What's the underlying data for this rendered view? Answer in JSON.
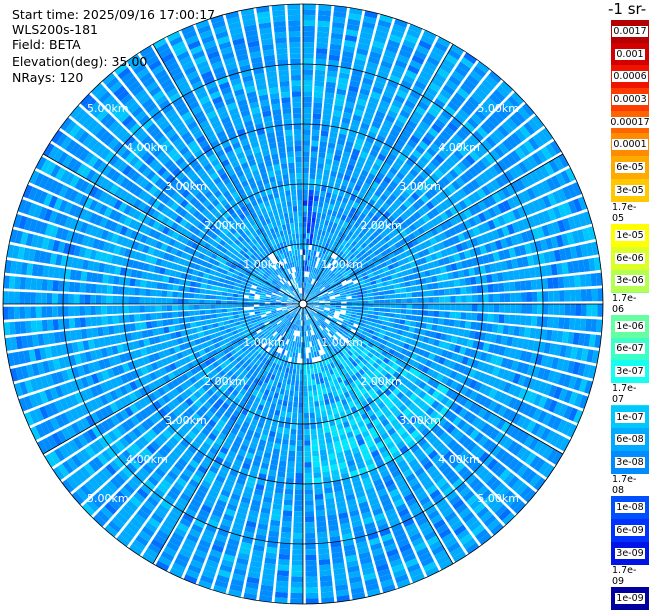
{
  "header": {
    "start_time": "Start time: 2025/09/16 17:00:17",
    "instrument": "WLS200s-181",
    "field": "Field: BETA",
    "elevation": "Elevation(deg): 35.00",
    "nrays": "NRays: 120"
  },
  "colorbar": {
    "units_label": "-1 sr-",
    "labels": [
      "0.0017",
      "0.001",
      "0.0006",
      "0.0003",
      "0.00017",
      "0.0001",
      "6e-05",
      "3e-05",
      "1.7e-05",
      "1e-05",
      "6e-06",
      "3e-06",
      "1.7e-06",
      "1e-06",
      "6e-07",
      "3e-07",
      "1.7e-07",
      "1e-07",
      "6e-08",
      "3e-08",
      "1.7e-08",
      "1e-08",
      "6e-09",
      "3e-09",
      "1.7e-09",
      "1e-09"
    ],
    "colors": [
      "#b40000",
      "#d20000",
      "#f01400",
      "#ff3c00",
      "#ff6400",
      "#ff8c00",
      "#ffaa00",
      "#ffc800",
      "#ffe600",
      "#ffff00",
      "#dcff28",
      "#b4ff50",
      "#8cff78",
      "#64ffa0",
      "#3cffc8",
      "#14fff0",
      "#00e6ff",
      "#00c8ff",
      "#00aaff",
      "#008cff",
      "#006eff",
      "#0050ff",
      "#0032ff",
      "#0014e6",
      "#0000c8",
      "#0000a0"
    ]
  },
  "chart_data": {
    "type": "heatmap",
    "projection": "polar-ppi",
    "field": "BETA",
    "elevation_deg": 35.0,
    "n_rays": 120,
    "range_ticks_km": [
      1,
      2,
      3,
      4,
      5
    ],
    "range_labels": [
      "1.00km",
      "2.00km",
      "3.00km",
      "4.00km",
      "5.00km"
    ],
    "max_range_km": 5.0,
    "background_value_range": [
      "6e-08",
      "3e-08"
    ],
    "enhanced_sectors": [
      {
        "azimuth_deg": [
          120,
          180
        ],
        "range_km": [
          1.0,
          3.0
        ],
        "value": "1.7e-07"
      },
      {
        "azimuth_deg": [
          0,
          10
        ],
        "range_km": [
          0.0,
          1.9
        ],
        "value": "1e-08"
      }
    ]
  }
}
